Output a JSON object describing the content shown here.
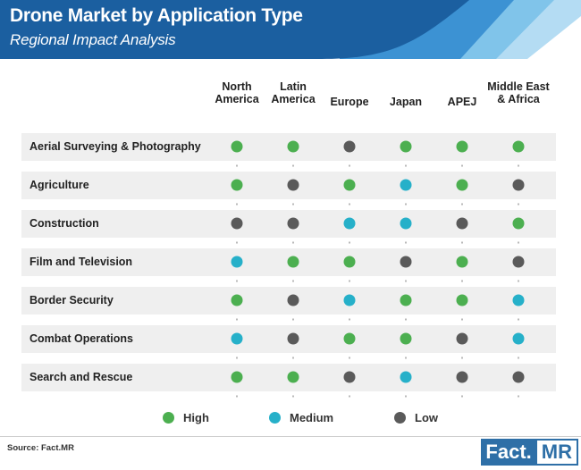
{
  "header": {
    "title": "Drone Market by Application Type",
    "subtitle": "Regional Impact Analysis"
  },
  "colors": {
    "header_dark": "#1b5fa0",
    "header_mid": "#3c92d3",
    "header_light": "#80c4ea",
    "header_pale": "#b4dcf3",
    "High": "#4caf50",
    "Medium": "#26b0c9",
    "Low": "#5a5a5a",
    "row_band": "#efefef",
    "connector": "#9a9a9a"
  },
  "chart_data": {
    "type": "table",
    "columns": [
      [
        "North",
        "America"
      ],
      [
        "Latin",
        "America"
      ],
      [
        "Europe"
      ],
      [
        "Japan"
      ],
      [
        "APEJ"
      ],
      [
        "Middle East",
        "& Africa"
      ]
    ],
    "rows": [
      {
        "label": "Aerial Surveying & Photography",
        "values": [
          "High",
          "High",
          "Low",
          "High",
          "High",
          "High"
        ]
      },
      {
        "label": "Agriculture",
        "values": [
          "High",
          "Low",
          "High",
          "Medium",
          "High",
          "Low"
        ]
      },
      {
        "label": "Construction",
        "values": [
          "Low",
          "Low",
          "Medium",
          "Medium",
          "Low",
          "High"
        ]
      },
      {
        "label": "Film and Television",
        "values": [
          "Medium",
          "High",
          "High",
          "Low",
          "High",
          "Low"
        ]
      },
      {
        "label": "Border Security",
        "values": [
          "High",
          "Low",
          "Medium",
          "High",
          "High",
          "Medium"
        ]
      },
      {
        "label": "Combat Operations",
        "values": [
          "Medium",
          "Low",
          "High",
          "High",
          "Low",
          "Medium"
        ]
      },
      {
        "label": "Search and Rescue",
        "values": [
          "High",
          "High",
          "Low",
          "Medium",
          "Low",
          "Low"
        ]
      }
    ],
    "legend": [
      "High",
      "Medium",
      "Low"
    ],
    "legend_position": "bottom"
  },
  "footer": {
    "source": "Source: Fact.MR",
    "logo_left": "Fact.",
    "logo_right": "MR"
  }
}
